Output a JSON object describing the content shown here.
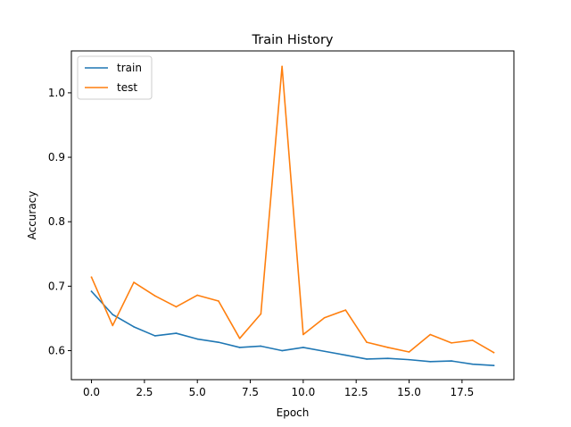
{
  "chart_data": {
    "type": "line",
    "title": "Train History",
    "xlabel": "Epoch",
    "ylabel": "Accuracy",
    "xlim": [
      -0.95,
      19.95
    ],
    "ylim": [
      0.555,
      1.065
    ],
    "x_ticks": [
      0.0,
      2.5,
      5.0,
      7.5,
      10.0,
      12.5,
      15.0,
      17.5
    ],
    "x_tick_labels": [
      "0.0",
      "2.5",
      "5.0",
      "7.5",
      "10.0",
      "12.5",
      "15.0",
      "17.5"
    ],
    "y_ticks": [
      0.6,
      0.7,
      0.8,
      0.9,
      1.0
    ],
    "y_tick_labels": [
      "0.6",
      "0.7",
      "0.8",
      "0.9",
      "1.0"
    ],
    "grid": false,
    "legend_position": "top-left",
    "x": [
      0,
      1,
      2,
      3,
      4,
      5,
      6,
      7,
      8,
      9,
      10,
      11,
      12,
      13,
      14,
      15,
      16,
      17,
      18,
      19
    ],
    "series": [
      {
        "name": "train",
        "color": "#1f77b4",
        "values": [
          0.692,
          0.656,
          0.637,
          0.623,
          0.627,
          0.618,
          0.613,
          0.605,
          0.607,
          0.6,
          0.605,
          0.599,
          0.593,
          0.587,
          0.588,
          0.586,
          0.583,
          0.584,
          0.579,
          0.577
        ]
      },
      {
        "name": "test",
        "color": "#ff7f0e",
        "values": [
          0.714,
          0.639,
          0.706,
          0.685,
          0.668,
          0.686,
          0.677,
          0.619,
          0.657,
          1.041,
          0.625,
          0.651,
          0.663,
          0.613,
          0.605,
          0.598,
          0.625,
          0.612,
          0.616,
          0.597
        ]
      }
    ]
  }
}
